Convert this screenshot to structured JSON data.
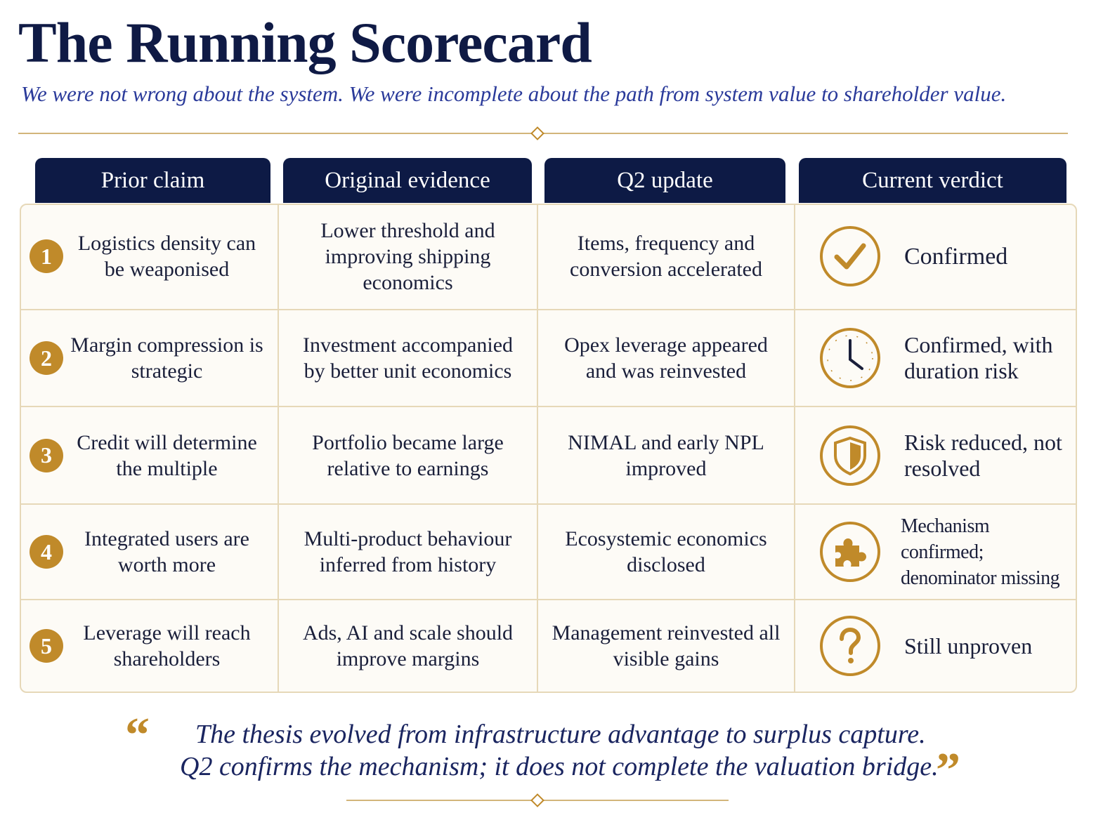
{
  "header": {
    "title": "The Running Scorecard",
    "subtitle": "We were not wrong about the system. We were incomplete about the path from system value to shareholder value."
  },
  "table": {
    "headers": [
      "Prior claim",
      "Original evidence",
      "Q2 update",
      "Current verdict"
    ],
    "rows": [
      [
        "1",
        "Logistics density can be weaponised",
        "Lower threshold and improving shipping economics",
        "Items, frequency and conversion accelerated",
        "Confirmed"
      ],
      [
        "2",
        "Margin compression is strategic",
        "Investment accompanied by better unit economics",
        "Opex leverage appeared and was reinvested",
        "Confirmed, with duration risk"
      ],
      [
        "3",
        "Credit will determine the multiple",
        "Portfolio became large relative to earnings",
        "NIMAL and early NPL improved",
        "Risk reduced, not resolved"
      ],
      [
        "4",
        "Integrated users are worth more",
        "Multi-product behaviour inferred from history",
        "Ecosystemic economics disclosed",
        "Mechanism confirmed; denominator missing"
      ],
      [
        "5",
        "Leverage will reach shareholders",
        "Ads, AI and scale should improve margins",
        "Management reinvested all visible gains",
        "Still unproven"
      ]
    ]
  },
  "quote": {
    "open_mark": "“",
    "lines": [
      "The thesis evolved from infrastructure advantage to surplus capture.",
      "Q2 confirms the mechanism; it does not complete the valuation bridge."
    ],
    "close_mark": "”"
  }
}
